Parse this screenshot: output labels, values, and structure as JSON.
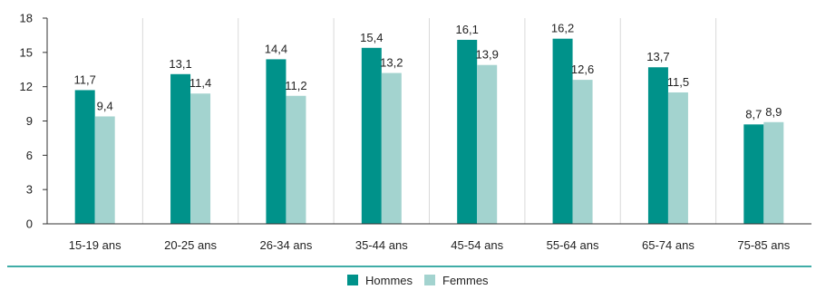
{
  "chart_data": {
    "type": "bar",
    "title": "",
    "xlabel": "",
    "ylabel": "",
    "categories": [
      "15-19 ans",
      "20-25 ans",
      "26-34 ans",
      "35-44 ans",
      "45-54 ans",
      "55-64 ans",
      "65-74 ans",
      "75-85 ans"
    ],
    "series": [
      {
        "name": "Hommes",
        "color": "#00928A",
        "values": [
          11.7,
          13.1,
          14.4,
          15.4,
          16.1,
          16.2,
          13.7,
          8.7
        ],
        "labels": [
          "11,7",
          "13,1",
          "14,4",
          "15,4",
          "16,1",
          "16,2",
          "13,7",
          "8,7"
        ]
      },
      {
        "name": "Femmes",
        "color": "#A3D3CF",
        "values": [
          9.4,
          11.4,
          11.2,
          13.2,
          13.9,
          12.6,
          11.5,
          8.9
        ],
        "labels": [
          "9,4",
          "11,4",
          "11,2",
          "13,2",
          "13,9",
          "12,6",
          "11,5",
          "8,9"
        ]
      }
    ],
    "ylim": [
      0,
      18
    ],
    "yticks": [
      0,
      3,
      6,
      9,
      12,
      15,
      18
    ],
    "grid": {
      "vertical_separators": true,
      "horizontal": false
    },
    "legend_position": "bottom-center",
    "colors": {
      "axis": "#333333",
      "separator": "#d9d9d9",
      "footer_line": "#00928A"
    }
  }
}
